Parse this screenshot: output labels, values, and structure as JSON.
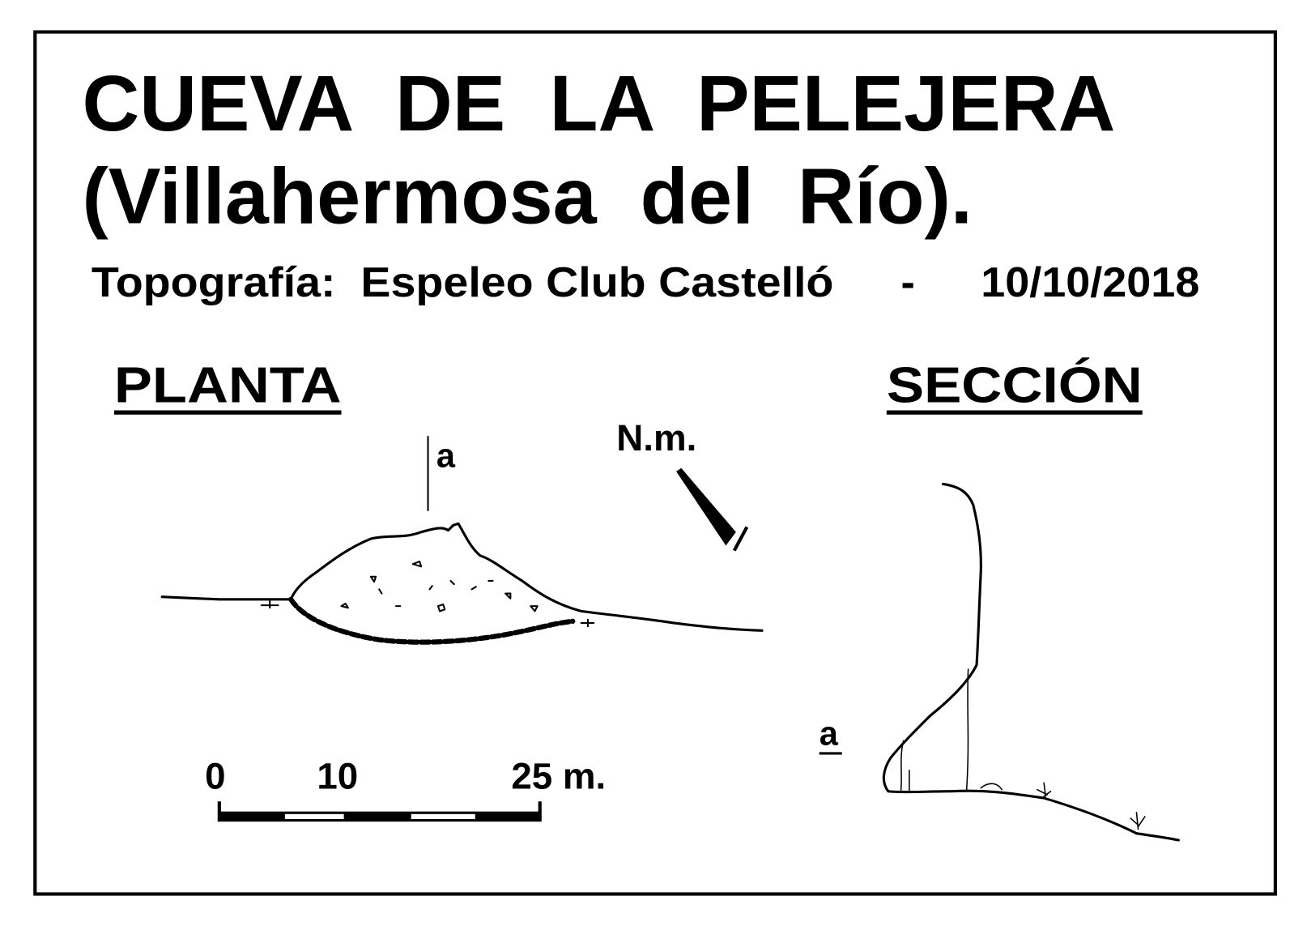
{
  "header": {
    "title": "CUEVA  DE  LA  PELEJERA",
    "subtitle": "(Villahermosa  del  Río).",
    "credit": "Topografía:  Espeleo Club Castelló",
    "separator": "-",
    "date": "10/10/2018"
  },
  "plan": {
    "heading": "PLANTA",
    "section_marker": "a",
    "north": "N.m."
  },
  "scale": {
    "labels": [
      "0",
      "10",
      "25 m."
    ]
  },
  "section": {
    "heading": "SECCIÓN",
    "marker": "a"
  }
}
